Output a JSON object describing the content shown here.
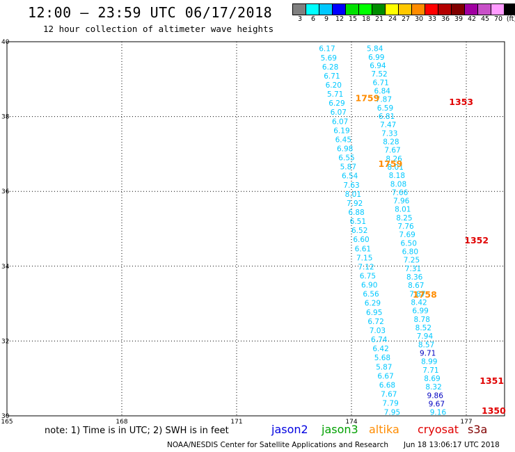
{
  "header": {
    "title": "12:00 – 23:59 UTC 06/17/2018",
    "subtitle": "12 hour collection of altimeter wave heights"
  },
  "legend": {
    "colors": [
      "#808080",
      "#00ffff",
      "#00c8ff",
      "#0000ff",
      "#00e000",
      "#00ff00",
      "#008c00",
      "#ffff00",
      "#ffc800",
      "#ff8c00",
      "#ff0000",
      "#b40000",
      "#800000",
      "#a000a0",
      "#c850c8",
      "#ff9bff",
      "#000000"
    ],
    "labels": [
      "3",
      "6",
      "9",
      "12",
      "15",
      "18",
      "21",
      "24",
      "27",
      "30",
      "33",
      "36",
      "39",
      "42",
      "45",
      "70",
      "(ft)"
    ]
  },
  "map": {
    "lon_range": [
      165,
      178
    ],
    "lat_range": [
      30,
      40
    ],
    "lon_ticks": [
      "165",
      "168",
      "171",
      "174",
      "177"
    ],
    "lat_ticks": [
      "40",
      "38",
      "36",
      "34",
      "32",
      "30"
    ]
  },
  "tracks": {
    "altika_color": "#ff8c00",
    "cryosat_color": "#e00000",
    "light_color": "#00c8ff",
    "dark_color": "#0000c0",
    "left_track": {
      "start": [
        173.15,
        39.82
      ],
      "end": [
        174.85,
        30.1
      ],
      "values": [
        "6.17",
        "5.69",
        "6.28",
        "6.71",
        "6.20",
        "5.71",
        "6.29",
        "6.07",
        "6.07",
        "6.19",
        "6.45",
        "6.98",
        "6.55",
        "5.87",
        "6.54",
        "7.63",
        "8.01",
        "7.92",
        "6.88",
        "6.51",
        "6.52",
        "6.60",
        "6.61",
        "7.15",
        "7.12",
        "6.75",
        "6.90",
        "6.56",
        "6.29",
        "6.95",
        "6.72",
        "7.03",
        "6.74",
        "6.42",
        "5.68",
        "5.87",
        "6.67",
        "6.68",
        "7.67",
        "7.79",
        "7.95"
      ]
    },
    "right_track": {
      "start": [
        174.4,
        39.82
      ],
      "end": [
        176.05,
        30.1
      ],
      "values": [
        "5.84",
        "6.99",
        "6.94",
        "7.52",
        "6.71",
        "6.84",
        "7.87",
        "6.59",
        "6.81",
        "7.47",
        "7.33",
        "8.28",
        "7.67",
        "8.26",
        "8.01",
        "8.18",
        "8.08",
        "7.66",
        "7.96",
        "8.01",
        "8.25",
        "7.76",
        "7.69",
        "6.50",
        "6.80",
        "7.25",
        "7.31",
        "8.36",
        "8.67",
        "7.87",
        "8.42",
        "6.99",
        "8.78",
        "8.52",
        "7.94",
        "8.57",
        "9.71",
        "8.99",
        "7.71",
        "8.69",
        "8.32",
        "9.86",
        "9.67",
        "9.16"
      ],
      "dark_indices": [
        36,
        41,
        42
      ]
    },
    "altika_labels": [
      {
        "text": "1759",
        "lon": 174.1,
        "lat": 38.5
      },
      {
        "text": "1759",
        "lon": 174.7,
        "lat": 36.75
      },
      {
        "text": "1758",
        "lon": 175.6,
        "lat": 33.25
      }
    ],
    "cryosat_labels": [
      {
        "text": "1353",
        "lon": 176.55,
        "lat": 38.4
      },
      {
        "text": "1352",
        "lon": 176.95,
        "lat": 34.7
      },
      {
        "text": "1351",
        "lon": 177.35,
        "lat": 30.95
      },
      {
        "text": "1350",
        "lon": 177.4,
        "lat": 30.15
      }
    ]
  },
  "footer": {
    "note": "note: 1) Time is in UTC; 2) SWH is in feet",
    "satellites": [
      {
        "name": "jason2",
        "color": "#0000e0"
      },
      {
        "name": "jason3",
        "color": "#00a000"
      },
      {
        "name": "altika",
        "color": "#ff8c00"
      },
      {
        "name": "cryosat",
        "color": "#e00000"
      },
      {
        "name": "s3a",
        "color": "#800000"
      }
    ],
    "credit": "NOAA/NESDIS Center for Satellite Applications and Research",
    "timestamp": "Jun 18 13:06:17 UTC 2018"
  }
}
